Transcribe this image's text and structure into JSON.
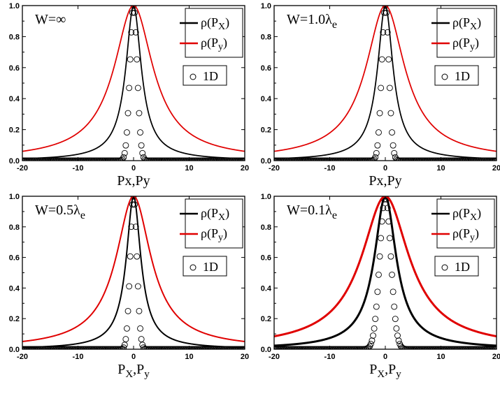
{
  "chart_data": [
    {
      "type": "line",
      "panel_label": "W=∞",
      "xlabel": "Px,Py",
      "xlim": [
        -20,
        20
      ],
      "ylim": [
        0,
        1.0
      ],
      "xticks": [
        "-20",
        "-10",
        "0",
        "10",
        "20"
      ],
      "yticks": [
        "0.0",
        "0.2",
        "0.4",
        "0.6",
        "0.8",
        "1.0"
      ],
      "legend": {
        "position": "top-right",
        "entries": [
          "ρ(P",
          "X",
          ")",
          "ρ(P",
          "y",
          ")",
          "1D"
        ]
      },
      "series": [
        {
          "name": "ρ(PX)",
          "color": "#000000",
          "style": "line",
          "width": 1.75
        },
        {
          "name": "ρ(Py)",
          "color": "#e00000",
          "style": "line",
          "width": 1.75
        },
        {
          "name": "1D",
          "color": "#000000",
          "style": "circles",
          "width": 0.5
        }
      ]
    },
    {
      "type": "line",
      "panel_label": "W=1.0λ",
      "panel_label_sub": "e",
      "xlabel": "Px,Py",
      "xlim": [
        -20,
        20
      ],
      "ylim": [
        0,
        1.0
      ],
      "xticks": [
        "-20",
        "-10",
        "0",
        "10",
        "20"
      ],
      "yticks": [
        "0.0",
        "0.2",
        "0.4",
        "0.6",
        "0.8",
        "1.0"
      ],
      "legend": {
        "position": "top-right",
        "entries": [
          "ρ(P",
          "X",
          ")",
          "ρ(P",
          "y",
          ")",
          "1D"
        ]
      },
      "series": [
        {
          "name": "ρ(PX)",
          "color": "#000000",
          "style": "line",
          "width": 1.75
        },
        {
          "name": "ρ(Py)",
          "color": "#e00000",
          "style": "line",
          "width": 1.75
        },
        {
          "name": "1D",
          "color": "#000000",
          "style": "circles",
          "width": 0.5
        }
      ]
    },
    {
      "type": "line",
      "panel_label": "W=0.5λ",
      "panel_label_sub": "e",
      "xlabel": "P",
      "xlabel_sub1": "X",
      "xlabel_mid": ",P",
      "xlabel_sub2": "y",
      "xlim": [
        -20,
        20
      ],
      "ylim": [
        0,
        1.0
      ],
      "xticks": [
        "-20",
        "-10",
        "0",
        "10",
        "20"
      ],
      "yticks": [
        "0.0",
        "0.2",
        "0.4",
        "0.6",
        "0.8",
        "1.0"
      ],
      "legend": {
        "position": "top-right",
        "entries": [
          "ρ(P",
          "X",
          ")",
          "ρ(P",
          "y",
          ")",
          "1D"
        ]
      },
      "series": [
        {
          "name": "ρ(PX)",
          "color": "#000000",
          "style": "line",
          "width": 2.0
        },
        {
          "name": "ρ(Py)",
          "color": "#e00000",
          "style": "line",
          "width": 2.0
        },
        {
          "name": "1D",
          "color": "#000000",
          "style": "circles",
          "width": 0.5
        }
      ]
    },
    {
      "type": "line",
      "panel_label": "W=0.1λ",
      "panel_label_sub": "e",
      "xlabel": "P",
      "xlabel_sub1": "X",
      "xlabel_mid": ",P",
      "xlabel_sub2": "y",
      "xlim": [
        -20,
        20
      ],
      "ylim": [
        0,
        1.0
      ],
      "xticks": [
        "-20",
        "-10",
        "0",
        "10",
        "20"
      ],
      "yticks": [
        "0.0",
        "0.2",
        "0.4",
        "0.6",
        "0.8",
        "1.0"
      ],
      "legend": {
        "position": "top-right",
        "entries": [
          "ρ(P",
          "X",
          ")",
          "ρ(P",
          "y",
          ")",
          "1D"
        ]
      },
      "series": [
        {
          "name": "ρ(PX)",
          "color": "#000000",
          "style": "line",
          "width": 3.0
        },
        {
          "name": "ρ(Py)",
          "color": "#e00000",
          "style": "line",
          "width": 3.0
        },
        {
          "name": "1D",
          "color": "#000000",
          "style": "circles",
          "width": 0.5
        }
      ]
    }
  ]
}
